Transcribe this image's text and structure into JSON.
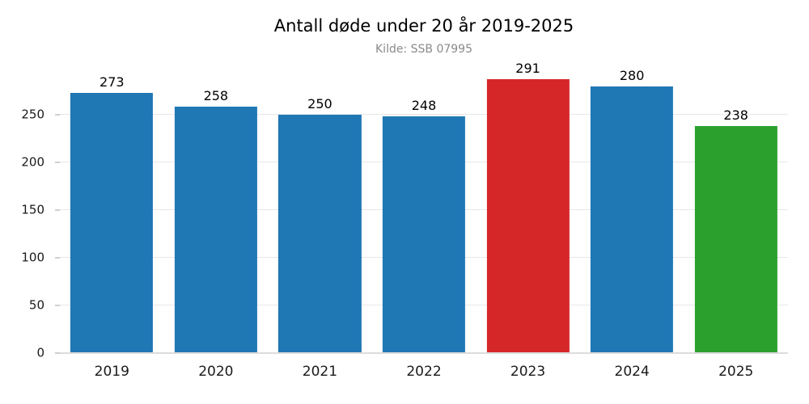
{
  "chart_data": {
    "type": "bar",
    "title": "Antall døde under 20 år 2019-2025",
    "subtitle": "Kilde: SSB 07995",
    "categories": [
      "2019",
      "2020",
      "2021",
      "2022",
      "2023",
      "2024",
      "2025"
    ],
    "values": [
      273,
      258,
      250,
      248,
      291,
      280,
      238
    ],
    "bar_colors": [
      "#1f77b4",
      "#1f77b4",
      "#1f77b4",
      "#1f77b4",
      "#d62728",
      "#1f77b4",
      "#2ca02c"
    ],
    "xlabel": "",
    "ylabel": "",
    "yticks": [
      0,
      50,
      100,
      150,
      200,
      250
    ],
    "ylim": [
      0,
      305
    ],
    "grid": true,
    "value_labels": true,
    "legend": null,
    "colors": {
      "default_bar": "#1f77b4",
      "highlight_bar": "#d62728",
      "latest_bar": "#2ca02c",
      "subtitle_text": "#8a8a8a",
      "gridline": "#e7e7e7",
      "axis_line": "#dcdcdc"
    }
  }
}
